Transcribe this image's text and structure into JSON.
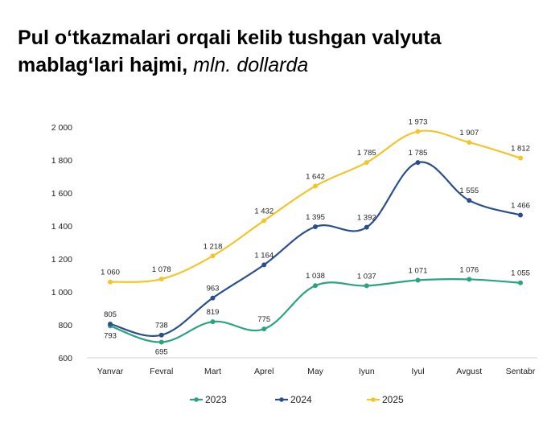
{
  "title": {
    "main_line1": "Pul o‘tkazmalari orqali kelib tushgan valyuta",
    "main_line2": "mablag‘lari hajmi,",
    "unit": "mln. dollarda"
  },
  "chart_data": {
    "type": "line",
    "categories": [
      "Yanvar",
      "Fevral",
      "Mart",
      "Aprel",
      "May",
      "Iyun",
      "Iyul",
      "Avgust",
      "Sentabr"
    ],
    "ylim": [
      600,
      2000
    ],
    "yticks": [
      600,
      800,
      1000,
      1200,
      1400,
      1600,
      1800,
      2000
    ],
    "ytick_labels": [
      "600",
      "800",
      "1 000",
      "1 200",
      "1 400",
      "1 600",
      "1 800",
      "2 000"
    ],
    "grid": false,
    "legend_position": "bottom",
    "series": [
      {
        "name": "2023",
        "color": "#2aa381",
        "values": [
          793,
          695,
          819,
          775,
          1038,
          1037,
          1071,
          1076,
          1055
        ],
        "labels": [
          "793",
          "695",
          "819",
          "775",
          "1 038",
          "1 037",
          "1 071",
          "1 076",
          "1 055"
        ],
        "label_side": [
          "below",
          "below",
          "above",
          "above",
          "above",
          "above",
          "above",
          "above",
          "above"
        ]
      },
      {
        "name": "2024",
        "color": "#2b4f8c",
        "values": [
          805,
          738,
          963,
          1164,
          1395,
          1392,
          1785,
          1555,
          1466
        ],
        "labels": [
          "805",
          "738",
          "963",
          "1 164",
          "1 395",
          "1 392",
          "1 785",
          "1 555",
          "1 466"
        ],
        "label_side": [
          "above",
          "above",
          "above",
          "above",
          "above",
          "above",
          "above",
          "above",
          "above"
        ]
      },
      {
        "name": "2025",
        "color": "#f4c52a",
        "values": [
          1060,
          1078,
          1218,
          1432,
          1642,
          1785,
          1973,
          1907,
          1812
        ],
        "labels": [
          "1 060",
          "1 078",
          "1 218",
          "1 432",
          "1 642",
          "1 785",
          "1 973",
          "1 907",
          "1 812"
        ],
        "label_side": [
          "above",
          "above",
          "above",
          "above",
          "above",
          "above",
          "above",
          "above",
          "above"
        ]
      }
    ]
  }
}
